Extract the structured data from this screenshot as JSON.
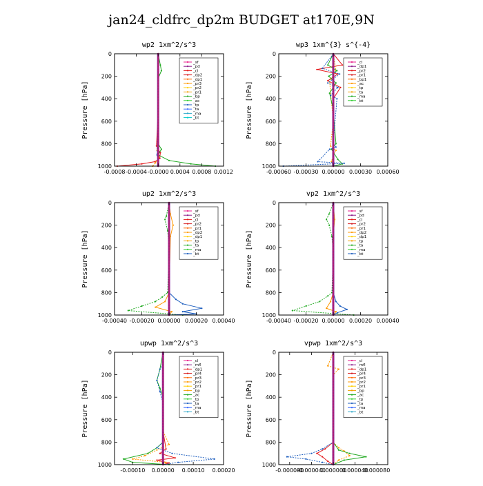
{
  "figure_title": "jan24_cldfrc_dp2m  BUDGET at170E,9N",
  "chart_data": [
    {
      "type": "line",
      "title": "wp2  1xm^2/s^3",
      "ylabel": "Pressure [hPa]",
      "ylim": [
        1000,
        0
      ],
      "yticks": [
        0,
        200,
        400,
        600,
        800,
        1000
      ],
      "xlim": [
        -0.0008,
        0.0012
      ],
      "xticks": [
        -0.0008,
        -0.0004,
        0.0,
        0.0004,
        0.0008,
        0.0012
      ],
      "xticklabels": [
        "-0.0008",
        "-0.0004",
        "-0.0000",
        "0.0004",
        "0.0008",
        "0.0012"
      ],
      "legend": [
        "_sf",
        "_pd",
        "_cl",
        "_dp2",
        "_dp1",
        "_pr3",
        "_pr2",
        "_pr1",
        "_bp",
        "_ac",
        "_tp",
        "_ta",
        "_ma",
        "_bt"
      ],
      "legend_placement": "top-right",
      "series": [
        {
          "name": "_cl",
          "color": "#e41a1c",
          "x": [
            0,
            0,
            0,
            -3e-05,
            0,
            4e-05,
            3e-05,
            -6e-05,
            -0.0003,
            -0.00075
          ],
          "y": [
            0,
            150,
            500,
            820,
            850,
            880,
            930,
            960,
            980,
            1000
          ]
        },
        {
          "name": "_dp1",
          "color": "#ff9900",
          "x": [
            0,
            0,
            0,
            -2e-05,
            2e-05,
            -5e-05,
            -0.0001
          ],
          "y": [
            0,
            200,
            600,
            860,
            920,
            970,
            1000
          ]
        },
        {
          "name": "_bp",
          "color": "#22aa22",
          "x": [
            0,
            4e-05,
            6e-05,
            0,
            0,
            6e-05,
            0,
            0.0002,
            0.0006,
            0.00105
          ],
          "y": [
            0,
            100,
            150,
            220,
            800,
            850,
            900,
            950,
            980,
            1000
          ]
        },
        {
          "name": "_ta",
          "color": "#1f5fbf",
          "x": [
            0,
            0,
            -2e-05,
            0,
            0
          ],
          "y": [
            0,
            400,
            900,
            960,
            1000
          ]
        },
        {
          "name": "_bt",
          "color": "#7f1fa0",
          "x": [
            0,
            0,
            0
          ],
          "y": [
            0,
            500,
            1000
          ]
        }
      ]
    },
    {
      "type": "line",
      "title": "wp3  1xm^{3} s^{-4}",
      "ylabel": "Pressure [hPa]",
      "ylim": [
        1000,
        0
      ],
      "yticks": [
        0,
        200,
        400,
        600,
        800,
        1000
      ],
      "xlim": [
        -0.0006,
        0.0006
      ],
      "xticks": [
        -0.0006,
        -0.0003,
        0.0,
        0.0003,
        0.0006
      ],
      "xticklabels": [
        "-0.00060",
        "-0.00030",
        "0.00000",
        "0.00030",
        "0.00060"
      ],
      "legend": [
        "_cl",
        "_dp1",
        "_pr2",
        "_pr1",
        "_bp1",
        "_ac",
        "_tp",
        "_ta",
        "_ma",
        "_bt"
      ],
      "legend_placement": "top-right",
      "series": [
        {
          "name": "_dp1",
          "color": "#e41a1c",
          "x": [
            0,
            0.0001,
            -0.00018,
            5e-05,
            -6e-05,
            8e-05,
            0,
            0,
            0
          ],
          "y": [
            0,
            100,
            140,
            180,
            240,
            300,
            400,
            700,
            1000
          ]
        },
        {
          "name": "_pr2",
          "color": "#ff9900",
          "x": [
            0,
            3e-05,
            -4e-05,
            0,
            -3e-05,
            3e-05,
            0,
            -2e-05,
            0
          ],
          "y": [
            0,
            150,
            250,
            600,
            820,
            860,
            900,
            960,
            1000
          ]
        },
        {
          "name": "_bp1",
          "color": "#22aa22",
          "x": [
            0,
            -6e-05,
            4e-05,
            -5e-05,
            3e-05,
            -4e-05,
            0,
            3e-05,
            -2e-05,
            5e-05,
            0.0001,
            0
          ],
          "y": [
            0,
            100,
            150,
            200,
            260,
            350,
            500,
            800,
            850,
            940,
            980,
            1000
          ]
        },
        {
          "name": "_ta",
          "color": "#1f5fbf",
          "x": [
            0,
            -0.00012,
            7e-05,
            -6e-05,
            5e-05,
            -3e-05,
            4e-05,
            0,
            3e-05,
            -4e-05,
            -0.00017,
            0.00012,
            -0.00055
          ],
          "y": [
            0,
            130,
            180,
            260,
            300,
            370,
            400,
            800,
            830,
            850,
            960,
            975,
            1000
          ]
        },
        {
          "name": "_bt",
          "color": "#7f1fa0",
          "x": [
            0,
            0,
            0
          ],
          "y": [
            0,
            500,
            1000
          ]
        }
      ]
    },
    {
      "type": "line",
      "title": "up2  1xm^2/s^3",
      "ylabel": "Pressure [hPa]",
      "ylim": [
        1000,
        0
      ],
      "yticks": [
        0,
        200,
        400,
        600,
        800,
        1000
      ],
      "xlim": [
        -0.0004,
        0.0004
      ],
      "xticks": [
        -0.0004,
        -0.0002,
        0.0,
        0.0002,
        0.0004
      ],
      "xticklabels": [
        "-0.00040",
        "-0.00020",
        "0.00000",
        "0.00020",
        "0.00040"
      ],
      "legend": [
        "_sf",
        "_pd",
        "_cl",
        "_pr2",
        "_pr1",
        "_dp2",
        "_dp1",
        "_tp",
        "_ta",
        "_ma",
        "_bt"
      ],
      "legend_placement": "top-right",
      "series": [
        {
          "name": "_pr1",
          "color": "#ff9900",
          "x": [
            0,
            1e-05,
            3e-05,
            1e-05,
            0,
            -3e-05,
            -0.0001,
            2e-05,
            0
          ],
          "y": [
            0,
            100,
            200,
            300,
            800,
            880,
            930,
            970,
            1000
          ]
        },
        {
          "name": "_dp2",
          "color": "#22aa22",
          "x": [
            0,
            -2e-05,
            -3e-05,
            -1e-05,
            0,
            -1e-05,
            -5e-05,
            -0.0001,
            -0.0002,
            -0.0003,
            0.0001
          ],
          "y": [
            0,
            120,
            150,
            250,
            400,
            800,
            840,
            880,
            920,
            960,
            1000
          ]
        },
        {
          "name": "_ta",
          "color": "#1f5fbf",
          "x": [
            0,
            0,
            5e-05,
            0.0001,
            0.00024,
            0.0001,
            0.0002,
            0
          ],
          "y": [
            0,
            800,
            860,
            900,
            940,
            970,
            990,
            1000
          ]
        },
        {
          "name": "_cl",
          "color": "#e41a1c",
          "x": [
            0,
            0,
            0
          ],
          "y": [
            0,
            500,
            1000
          ]
        }
      ]
    },
    {
      "type": "line",
      "title": "vp2  1xm^2/s^3",
      "ylabel": "Pressure [hPa]",
      "ylim": [
        1000,
        0
      ],
      "yticks": [
        0,
        200,
        400,
        600,
        800,
        1000
      ],
      "xlim": [
        -0.0004,
        0.0004
      ],
      "xticks": [
        -0.0004,
        -0.0002,
        0.0,
        0.0002,
        0.0004
      ],
      "xticklabels": [
        "-0.00040",
        "-0.00020",
        "0.00000",
        "0.00020",
        "0.00040"
      ],
      "legend": [
        "_sf",
        "_pd",
        "_cl",
        "_pr2",
        "_pr1",
        "_dp2",
        "_dp1",
        "_tp",
        "_ta",
        "_ma",
        "_bt"
      ],
      "legend_placement": "top-right",
      "series": [
        {
          "name": "_pr1",
          "color": "#ff9900",
          "x": [
            0,
            1e-05,
            0,
            0,
            -2e-05,
            -5e-05,
            2e-05,
            0
          ],
          "y": [
            0,
            150,
            300,
            800,
            880,
            940,
            970,
            1000
          ]
        },
        {
          "name": "_dp2",
          "color": "#22aa22",
          "x": [
            0,
            -3e-05,
            -5e-05,
            -3e-05,
            -1e-05,
            0,
            -1e-05,
            -4e-05,
            -0.0001,
            -0.0002,
            -0.0003,
            0.00015
          ],
          "y": [
            0,
            100,
            150,
            200,
            300,
            450,
            800,
            830,
            880,
            920,
            960,
            1000
          ]
        },
        {
          "name": "_ta",
          "color": "#1f5fbf",
          "x": [
            0,
            0,
            2e-05,
            5e-05,
            0.0001,
            3e-05,
            0
          ],
          "y": [
            0,
            800,
            880,
            920,
            950,
            980,
            1000
          ]
        },
        {
          "name": "_cl",
          "color": "#e41a1c",
          "x": [
            0,
            0,
            0
          ],
          "y": [
            0,
            500,
            1000
          ]
        }
      ]
    },
    {
      "type": "line",
      "title": "upwp  1xm^2/s^3",
      "ylabel": "Pressure [hPa]",
      "ylim": [
        1000,
        0
      ],
      "yticks": [
        0,
        200,
        400,
        600,
        800,
        1000
      ],
      "xlim": [
        -0.00016,
        0.0002
      ],
      "xticks": [
        -0.0001,
        0.0,
        0.0001,
        0.0002
      ],
      "xticklabels": [
        "-0.00010",
        "0.00000",
        "0.00010",
        "0.00020"
      ],
      "legend": [
        "_cl",
        "_mfl",
        "_dp1",
        "_pr4",
        "_pr3",
        "_pr2",
        "_pr1",
        "_bp",
        "_ac",
        "_tp",
        "_ta",
        "_ma",
        "_bt"
      ],
      "legend_placement": "top-right",
      "series": [
        {
          "name": "_dp1",
          "color": "#e41a1c",
          "x": [
            0,
            0,
            1e-05,
            -1e-05,
            4e-05,
            -2e-05,
            2e-05,
            0
          ],
          "y": [
            0,
            700,
            860,
            900,
            940,
            960,
            985,
            1000
          ]
        },
        {
          "name": "_pr1",
          "color": "#ff9900",
          "x": [
            0,
            0,
            2e-05,
            -2e-05,
            -6e-05,
            -0.0001,
            1e-05,
            0
          ],
          "y": [
            0,
            700,
            820,
            870,
            920,
            950,
            980,
            1000
          ]
        },
        {
          "name": "_bp",
          "color": "#22aa22",
          "x": [
            0,
            -1e-05,
            -2e-05,
            -1e-05,
            0,
            0,
            -2e-05,
            -5e-05,
            -0.00013,
            -0.0001,
            2e-05
          ],
          "y": [
            0,
            150,
            250,
            320,
            400,
            800,
            850,
            900,
            950,
            980,
            1000
          ]
        },
        {
          "name": "_ta",
          "color": "#1f5fbf",
          "x": [
            0,
            0,
            -1e-05,
            -2e-05,
            -1e-05,
            0,
            0,
            -2e-05,
            3e-05,
            0.00017,
            5e-05,
            0
          ],
          "y": [
            0,
            100,
            150,
            250,
            350,
            450,
            800,
            850,
            900,
            950,
            980,
            1000
          ]
        },
        {
          "name": "_bt",
          "color": "#7f1fa0",
          "x": [
            0,
            0,
            0
          ],
          "y": [
            0,
            500,
            1000
          ]
        }
      ]
    },
    {
      "type": "line",
      "title": "vpwp  1xm^2/s^3",
      "ylabel": "Pressure [hPa]",
      "ylim": [
        1000,
        0
      ],
      "yticks": [
        0,
        200,
        400,
        600,
        800,
        1000
      ],
      "xlim": [
        -0.0001,
        0.0001
      ],
      "xticks": [
        -8e-05,
        -4e-05,
        0.0,
        4e-05,
        8e-05
      ],
      "xticklabels": [
        "-0.000080",
        "-0.000040",
        "0.000000",
        "0.000040",
        "0.000080"
      ],
      "legend": [
        "_cl",
        "_mfl",
        "_dp1",
        "_pr4",
        "_pr3",
        "_pr2",
        "_pr1",
        "_bp",
        "_ac",
        "_tp",
        "_ta",
        "_ma",
        "_bt"
      ],
      "legend_placement": "top-right",
      "series": [
        {
          "name": "_dp1",
          "color": "#e41a1c",
          "x": [
            0,
            0,
            -1.5e-05,
            -3e-05,
            -2e-05,
            -1e-05,
            0
          ],
          "y": [
            0,
            800,
            860,
            900,
            930,
            970,
            1000
          ]
        },
        {
          "name": "_pr1",
          "color": "#ff9900",
          "x": [
            0,
            -1e-05,
            1e-05,
            0,
            0,
            1e-05,
            2e-05,
            3e-05,
            1e-05,
            0
          ],
          "y": [
            0,
            120,
            150,
            200,
            800,
            850,
            880,
            920,
            960,
            1000
          ]
        },
        {
          "name": "_bp",
          "color": "#22aa22",
          "x": [
            0,
            0,
            1e-05,
            3e-05,
            6e-05,
            2e-05,
            0
          ],
          "y": [
            0,
            800,
            870,
            900,
            930,
            960,
            1000
          ]
        },
        {
          "name": "_ta",
          "color": "#1f5fbf",
          "x": [
            0,
            0,
            -2e-05,
            -4e-05,
            -8.5e-05,
            -5e-05,
            -2e-05,
            0
          ],
          "y": [
            0,
            800,
            860,
            900,
            930,
            950,
            980,
            1000
          ]
        },
        {
          "name": "_bt",
          "color": "#7f1fa0",
          "x": [
            0,
            0,
            0
          ],
          "y": [
            0,
            500,
            1000
          ]
        }
      ]
    }
  ]
}
